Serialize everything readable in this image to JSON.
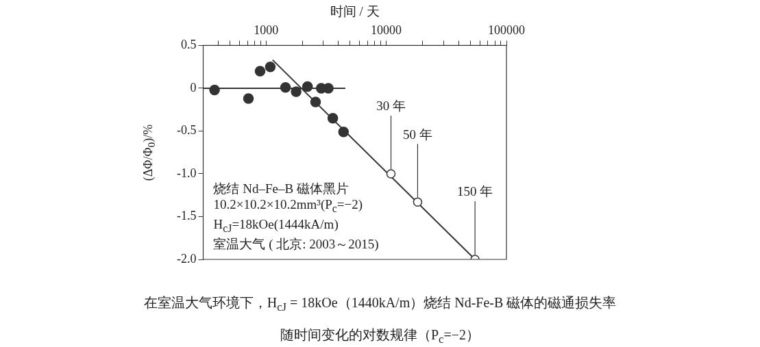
{
  "chart_data": {
    "type": "scatter",
    "xlabel": "时间 / 天",
    "ylabel": "(ΔΦ/Φ$_{0}$)/%",
    "log": "x",
    "xlim": [
      300,
      100000
    ],
    "ylim": [
      -2,
      0.5
    ],
    "xticks": [
      {
        "value": 400,
        "label": null
      },
      {
        "value": 500,
        "label": null
      },
      {
        "value": 600,
        "label": null
      },
      {
        "value": 700,
        "label": null
      },
      {
        "value": 800,
        "label": null
      },
      {
        "value": 900,
        "label": null
      },
      1000,
      {
        "value": 2000,
        "label": null
      },
      {
        "value": 3000,
        "label": null
      },
      {
        "value": 4000,
        "label": null
      },
      {
        "value": 5000,
        "label": null
      },
      {
        "value": 6000,
        "label": null
      },
      {
        "value": 7000,
        "label": null
      },
      {
        "value": 8000,
        "label": null
      },
      {
        "value": 9000,
        "label": null
      },
      10000,
      {
        "value": 20000,
        "label": null
      },
      {
        "value": 30000,
        "label": null
      },
      {
        "value": 40000,
        "label": null
      },
      {
        "value": 50000,
        "label": null
      },
      {
        "value": 60000,
        "label": null
      },
      {
        "value": 70000,
        "label": null
      },
      {
        "value": 80000,
        "label": null
      },
      {
        "value": 90000,
        "label": null
      },
      100000
    ],
    "yticks": [
      0.5,
      0,
      {
        "value": -0.5,
        "label": "-0.5"
      },
      {
        "value": -1,
        "label": "-1.0"
      },
      {
        "value": -1.5,
        "label": "-1.5"
      },
      {
        "value": -2,
        "label": "-2.0"
      }
    ],
    "grid": false,
    "legend": false,
    "marker": "circle",
    "line_style": "solid",
    "series": [
      {
        "type": "scatter",
        "color": "#333333",
        "x": [
          373,
          714,
          892,
          1085,
          1452,
          1780,
          2213,
          2583,
          2878,
          3298,
          3594,
          4414
        ],
        "values": [
          -0.02,
          -0.12,
          0.2,
          0.25,
          0.01,
          -0.04,
          0.02,
          -0.16,
          0,
          0,
          -0.35,
          -0.51
        ]
      },
      {
        "type": "line",
        "marker": "none",
        "color": "#333333",
        "x": [
          300,
          4570
        ],
        "values": [
          0,
          0
        ]
      },
      {
        "type": "line",
        "marker": "none",
        "color": "#333333",
        "x": [
          1135,
          54750
        ],
        "values": [
          0.33,
          -2.0
        ]
      },
      {
        "type": "scatter",
        "color": "#333333",
        "x": [
          10950,
          18250,
          54750
        ],
        "values": [
          -1.0,
          -1.33,
          -2.0
        ]
      }
    ],
    "annotations": [
      "烧结 Nd–Fe–B 磁体黑片",
      "10.2×10.2×10.2mm³(P$_{c}$=−2)",
      "H$_{cJ}$=18kOe(1444kA/m)",
      "室温大气 ( 北京: 2003～2015)",
      {
        "text": "30 年",
        "x": 10950,
        "y": -1.0
      },
      {
        "text": "50 年",
        "x": 18250,
        "y": -1.33
      },
      {
        "text": "150 年",
        "x": 54750,
        "y": -2.0
      },
      "在室温大气环境下，H$_{cJ}$ = 18kOe（1440kA/m）烧结 Nd-Fe-B 磁体的磁通损失率",
      "随时间变化的对数规律（P$_{c}$=−2）"
    ]
  }
}
